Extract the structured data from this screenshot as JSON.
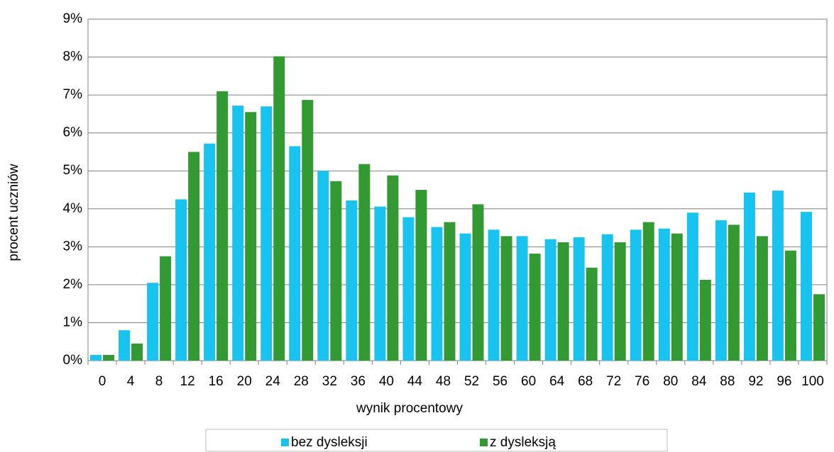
{
  "chart_data": {
    "type": "bar",
    "x_label": "wynik procentowy",
    "y_label": "procent uczniów",
    "categories": [
      "0",
      "4",
      "8",
      "12",
      "16",
      "20",
      "24",
      "28",
      "32",
      "36",
      "40",
      "44",
      "48",
      "52",
      "56",
      "60",
      "64",
      "68",
      "72",
      "76",
      "80",
      "84",
      "88",
      "92",
      "96",
      "100"
    ],
    "series": [
      {
        "name": "bez dysleksji",
        "color": "#19c3f0",
        "values": [
          0.15,
          0.8,
          2.05,
          4.25,
          5.72,
          6.72,
          6.7,
          5.65,
          5.0,
          4.22,
          4.06,
          3.78,
          3.52,
          3.35,
          3.45,
          3.28,
          3.2,
          3.25,
          3.33,
          3.45,
          3.48,
          3.9,
          3.7,
          4.43,
          4.48,
          3.92
        ]
      },
      {
        "name": "z dysleksją",
        "color": "#339933",
        "values": [
          0.15,
          0.45,
          2.75,
          5.5,
          7.1,
          6.55,
          8.02,
          6.87,
          4.73,
          5.18,
          4.88,
          4.5,
          3.65,
          4.12,
          3.28,
          2.82,
          3.12,
          2.45,
          3.12,
          3.65,
          3.35,
          2.13,
          3.58,
          3.28,
          2.9,
          1.75
        ]
      }
    ],
    "ylim": [
      0,
      9
    ],
    "yticks": [
      {
        "value": 0,
        "label": "0%"
      },
      {
        "value": 1,
        "label": "1%"
      },
      {
        "value": 2,
        "label": "2%"
      },
      {
        "value": 3,
        "label": "3%"
      },
      {
        "value": 4,
        "label": "4%"
      },
      {
        "value": 5,
        "label": "5%"
      },
      {
        "value": 6,
        "label": "6%"
      },
      {
        "value": 7,
        "label": "7%"
      },
      {
        "value": 8,
        "label": "8%"
      },
      {
        "value": 9,
        "label": "9%"
      }
    ],
    "grid": true,
    "legend": "bottom"
  }
}
